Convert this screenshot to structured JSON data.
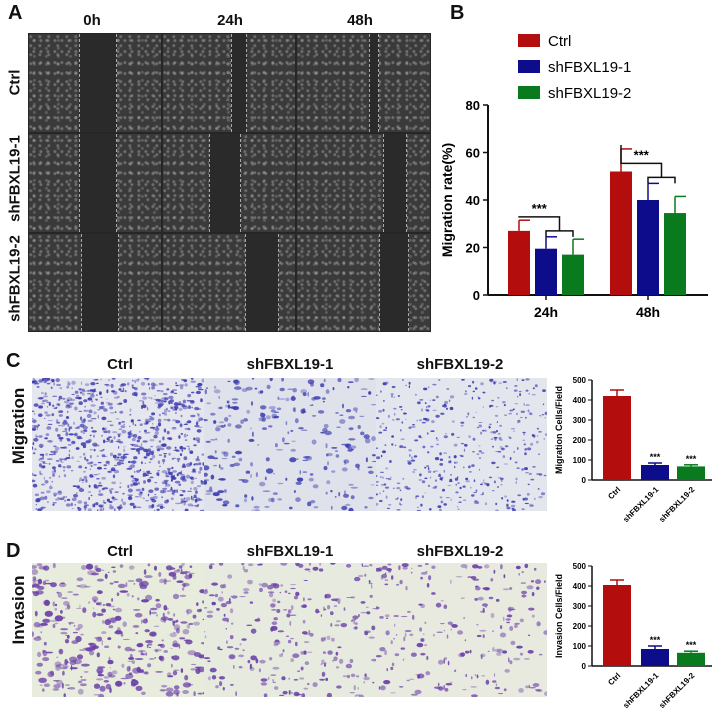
{
  "panel_a": {
    "label": "A",
    "time_labels": [
      "0h",
      "24h",
      "48h"
    ],
    "row_labels": [
      "Ctrl",
      "shFBXL19-1",
      "shFBXL19-2"
    ]
  },
  "panel_b_label": "B",
  "panel_c": {
    "label": "C",
    "row_label": "Migration",
    "col_labels": [
      "Ctrl",
      "shFBXL19-1",
      "shFBXL19-2"
    ]
  },
  "panel_d": {
    "label": "D",
    "row_label": "Invasion",
    "col_labels": [
      "Ctrl",
      "shFBXL19-1",
      "shFBXL19-2"
    ]
  },
  "colors": {
    "ctrl": "#b30d0d",
    "sh1": "#0d0d8c",
    "sh2": "#0a7a1e",
    "migration_stain": "#3c3cb0",
    "invasion_stain": "#6a3fa8"
  },
  "chart_data": [
    {
      "id": "B",
      "type": "bar",
      "categories": [
        "24h",
        "48h"
      ],
      "series": [
        {
          "name": "Ctrl",
          "values": [
            27,
            52
          ],
          "errors": [
            4.5,
            9.5
          ],
          "color": "#b30d0d"
        },
        {
          "name": "shFBXL19-1",
          "values": [
            19.5,
            40
          ],
          "errors": [
            5,
            7
          ],
          "color": "#0d0d8c"
        },
        {
          "name": "shFBXL19-2",
          "values": [
            17,
            34.5
          ],
          "errors": [
            6.5,
            7
          ],
          "color": "#0a7a1e"
        }
      ],
      "ylabel": "Migration rate(%)",
      "ylim": [
        0,
        80
      ],
      "yticks": [
        0,
        20,
        40,
        60,
        80
      ],
      "legend": "top",
      "annotations": [
        "***",
        "***"
      ]
    },
    {
      "id": "C",
      "type": "bar",
      "categories": [
        "Ctrl",
        "shFBXL19-1",
        "shFBXL19-2"
      ],
      "values": [
        420,
        75,
        68
      ],
      "errors": [
        30,
        10,
        8
      ],
      "colors": [
        "#b30d0d",
        "#0d0d8c",
        "#0a7a1e"
      ],
      "ylabel": "Migration Cells/Field",
      "ylim": [
        0,
        500
      ],
      "yticks": [
        0,
        100,
        200,
        300,
        400,
        500
      ],
      "annotations": [
        "",
        "***",
        "***"
      ]
    },
    {
      "id": "D",
      "type": "bar",
      "categories": [
        "Ctrl",
        "shFBXL19-1",
        "shFBXL19-2"
      ],
      "values": [
        405,
        85,
        66
      ],
      "errors": [
        25,
        15,
        8
      ],
      "colors": [
        "#b30d0d",
        "#0d0d8c",
        "#0a7a1e"
      ],
      "ylabel": "Invasion Cells/Field",
      "ylim": [
        0,
        500
      ],
      "yticks": [
        0,
        100,
        200,
        300,
        400,
        500
      ],
      "annotations": [
        "",
        "***",
        "***"
      ]
    }
  ]
}
